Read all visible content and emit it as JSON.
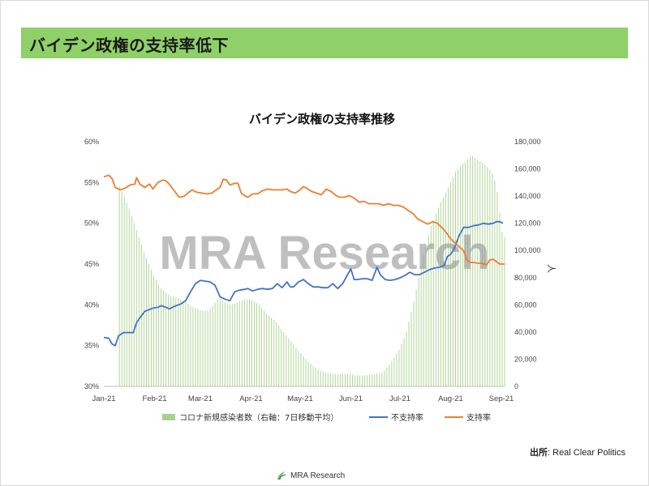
{
  "header": {
    "title": "バイデン政権の支持率低下"
  },
  "watermark": "MRA Research",
  "source": {
    "label": "出所",
    "sep": ":",
    "text": "Real Clear Politics"
  },
  "footer": {
    "brand": "MRA Research"
  },
  "colors": {
    "header_bg": "#8fd168",
    "bars": "#a9d18e",
    "disapproval": "#4472c4",
    "approval": "#ed7d31"
  },
  "chart_data": {
    "type": "line",
    "title": "バイデン政権の支持率推移",
    "ylabel": "",
    "y2label": "人",
    "ylim": [
      0.3,
      0.6
    ],
    "y2lim": [
      0,
      180000
    ],
    "x_ticks": [
      "Jan-21",
      "Feb-21",
      "Mar-21",
      "Apr-21",
      "May-21",
      "Jun-21",
      "Jul-21",
      "Aug-21",
      "Sep-21"
    ],
    "y_ticks": [
      "30%",
      "35%",
      "40%",
      "45%",
      "50%",
      "55%",
      "60%"
    ],
    "y2_ticks": [
      "0",
      "20,000",
      "40,000",
      "60,000",
      "80,000",
      "100,000",
      "120,000",
      "140,000",
      "160,000",
      "180,000"
    ],
    "legend": [
      "コロナ新規感染者数（右軸：7日移動平均）",
      "不支持率",
      "支持率"
    ],
    "x_days": [
      0,
      31,
      59,
      90,
      120,
      151,
      181,
      212,
      243
    ],
    "cases": {
      "name": "コロナ新規感染者数（右軸：7日移動平均）",
      "axis": "right",
      "points": [
        [
          8,
          0
        ],
        [
          9,
          148000
        ],
        [
          10,
          146000
        ],
        [
          12,
          141000
        ],
        [
          15,
          132000
        ],
        [
          20,
          115000
        ],
        [
          25,
          97000
        ],
        [
          31,
          80000
        ],
        [
          35,
          72000
        ],
        [
          40,
          67000
        ],
        [
          45,
          65000
        ],
        [
          50,
          62000
        ],
        [
          55,
          58000
        ],
        [
          59,
          56000
        ],
        [
          63,
          55000
        ],
        [
          67,
          60000
        ],
        [
          70,
          65000
        ],
        [
          74,
          62000
        ],
        [
          78,
          60000
        ],
        [
          82,
          62000
        ],
        [
          86,
          64000
        ],
        [
          90,
          64000
        ],
        [
          95,
          60000
        ],
        [
          100,
          53000
        ],
        [
          105,
          48000
        ],
        [
          110,
          40000
        ],
        [
          115,
          32000
        ],
        [
          120,
          25000
        ],
        [
          125,
          18000
        ],
        [
          130,
          13000
        ],
        [
          135,
          10000
        ],
        [
          140,
          9000
        ],
        [
          145,
          9000
        ],
        [
          150,
          9000
        ],
        [
          155,
          8000
        ],
        [
          160,
          8000
        ],
        [
          165,
          9000
        ],
        [
          170,
          10000
        ],
        [
          172,
          12000
        ],
        [
          175,
          17000
        ],
        [
          178,
          22000
        ],
        [
          181,
          28000
        ],
        [
          185,
          40000
        ],
        [
          190,
          65000
        ],
        [
          195,
          95000
        ],
        [
          200,
          118000
        ],
        [
          205,
          133000
        ],
        [
          210,
          145000
        ],
        [
          212,
          150000
        ],
        [
          215,
          158000
        ],
        [
          218,
          162000
        ],
        [
          220,
          164000
        ],
        [
          223,
          168000
        ],
        [
          225,
          170000
        ],
        [
          228,
          167000
        ],
        [
          231,
          165000
        ],
        [
          234,
          162000
        ],
        [
          237,
          158000
        ],
        [
          240,
          148000
        ],
        [
          242,
          128000
        ],
        [
          243,
          115000
        ],
        [
          245,
          110000
        ]
      ]
    },
    "series": [
      {
        "name": "不支持率",
        "axis": "left",
        "points": [
          [
            0,
            0.36
          ],
          [
            3,
            0.359
          ],
          [
            5,
            0.352
          ],
          [
            7,
            0.35
          ],
          [
            9,
            0.362
          ],
          [
            12,
            0.366
          ],
          [
            16,
            0.366
          ],
          [
            18,
            0.366
          ],
          [
            20,
            0.378
          ],
          [
            22,
            0.384
          ],
          [
            25,
            0.392
          ],
          [
            30,
            0.396
          ],
          [
            33,
            0.397
          ],
          [
            35,
            0.399
          ],
          [
            38,
            0.397
          ],
          [
            40,
            0.395
          ],
          [
            43,
            0.398
          ],
          [
            47,
            0.401
          ],
          [
            50,
            0.405
          ],
          [
            53,
            0.416
          ],
          [
            56,
            0.426
          ],
          [
            59,
            0.43
          ],
          [
            62,
            0.429
          ],
          [
            65,
            0.428
          ],
          [
            68,
            0.424
          ],
          [
            71,
            0.41
          ],
          [
            74,
            0.407
          ],
          [
            77,
            0.405
          ],
          [
            80,
            0.416
          ],
          [
            83,
            0.418
          ],
          [
            86,
            0.419
          ],
          [
            88,
            0.42
          ],
          [
            91,
            0.417
          ],
          [
            94,
            0.419
          ],
          [
            97,
            0.42
          ],
          [
            100,
            0.419
          ],
          [
            103,
            0.42
          ],
          [
            106,
            0.426
          ],
          [
            109,
            0.421
          ],
          [
            112,
            0.428
          ],
          [
            114,
            0.422
          ],
          [
            116,
            0.422
          ],
          [
            119,
            0.428
          ],
          [
            122,
            0.431
          ],
          [
            125,
            0.426
          ],
          [
            128,
            0.422
          ],
          [
            131,
            0.422
          ],
          [
            134,
            0.421
          ],
          [
            137,
            0.421
          ],
          [
            140,
            0.426
          ],
          [
            143,
            0.42
          ],
          [
            146,
            0.426
          ],
          [
            149,
            0.437
          ],
          [
            151,
            0.444
          ],
          [
            153,
            0.431
          ],
          [
            155,
            0.431
          ],
          [
            158,
            0.432
          ],
          [
            161,
            0.432
          ],
          [
            164,
            0.43
          ],
          [
            167,
            0.446
          ],
          [
            169,
            0.437
          ],
          [
            172,
            0.431
          ],
          [
            175,
            0.43
          ],
          [
            178,
            0.431
          ],
          [
            181,
            0.433
          ],
          [
            184,
            0.436
          ],
          [
            187,
            0.44
          ],
          [
            190,
            0.437
          ],
          [
            193,
            0.437
          ],
          [
            196,
            0.44
          ],
          [
            199,
            0.443
          ],
          [
            202,
            0.445
          ],
          [
            205,
            0.446
          ],
          [
            208,
            0.448
          ],
          [
            210,
            0.459
          ],
          [
            212,
            0.462
          ],
          [
            214,
            0.468
          ],
          [
            217,
            0.484
          ],
          [
            220,
            0.495
          ],
          [
            223,
            0.495
          ],
          [
            226,
            0.497
          ],
          [
            229,
            0.498
          ],
          [
            232,
            0.5
          ],
          [
            235,
            0.499
          ],
          [
            238,
            0.5
          ],
          [
            240,
            0.502
          ],
          [
            242,
            0.502
          ],
          [
            244,
            0.5
          ]
        ]
      },
      {
        "name": "支持率",
        "axis": "left",
        "points": [
          [
            0,
            0.557
          ],
          [
            3,
            0.559
          ],
          [
            5,
            0.555
          ],
          [
            7,
            0.544
          ],
          [
            10,
            0.541
          ],
          [
            13,
            0.543
          ],
          [
            16,
            0.547
          ],
          [
            19,
            0.548
          ],
          [
            20,
            0.556
          ],
          [
            22,
            0.548
          ],
          [
            25,
            0.544
          ],
          [
            28,
            0.548
          ],
          [
            30,
            0.542
          ],
          [
            33,
            0.55
          ],
          [
            36,
            0.553
          ],
          [
            38,
            0.552
          ],
          [
            40,
            0.548
          ],
          [
            43,
            0.54
          ],
          [
            46,
            0.532
          ],
          [
            49,
            0.533
          ],
          [
            52,
            0.538
          ],
          [
            54,
            0.541
          ],
          [
            57,
            0.538
          ],
          [
            60,
            0.537
          ],
          [
            63,
            0.536
          ],
          [
            66,
            0.537
          ],
          [
            68,
            0.54
          ],
          [
            71,
            0.544
          ],
          [
            73,
            0.554
          ],
          [
            75,
            0.553
          ],
          [
            77,
            0.547
          ],
          [
            80,
            0.549
          ],
          [
            82,
            0.549
          ],
          [
            84,
            0.537
          ],
          [
            86,
            0.534
          ],
          [
            88,
            0.532
          ],
          [
            91,
            0.536
          ],
          [
            94,
            0.536
          ],
          [
            97,
            0.54
          ],
          [
            100,
            0.542
          ],
          [
            103,
            0.541
          ],
          [
            106,
            0.541
          ],
          [
            109,
            0.541
          ],
          [
            112,
            0.542
          ],
          [
            114,
            0.539
          ],
          [
            117,
            0.537
          ],
          [
            120,
            0.541
          ],
          [
            122,
            0.545
          ],
          [
            124,
            0.543
          ],
          [
            127,
            0.539
          ],
          [
            130,
            0.537
          ],
          [
            133,
            0.535
          ],
          [
            136,
            0.542
          ],
          [
            139,
            0.539
          ],
          [
            142,
            0.534
          ],
          [
            144,
            0.532
          ],
          [
            147,
            0.532
          ],
          [
            150,
            0.534
          ],
          [
            153,
            0.531
          ],
          [
            156,
            0.526
          ],
          [
            159,
            0.527
          ],
          [
            162,
            0.524
          ],
          [
            165,
            0.524
          ],
          [
            168,
            0.524
          ],
          [
            171,
            0.522
          ],
          [
            174,
            0.524
          ],
          [
            177,
            0.522
          ],
          [
            180,
            0.522
          ],
          [
            183,
            0.52
          ],
          [
            186,
            0.516
          ],
          [
            189,
            0.512
          ],
          [
            192,
            0.505
          ],
          [
            195,
            0.502
          ],
          [
            198,
            0.499
          ],
          [
            201,
            0.502
          ],
          [
            204,
            0.5
          ],
          [
            207,
            0.494
          ],
          [
            210,
            0.487
          ],
          [
            212,
            0.481
          ],
          [
            215,
            0.475
          ],
          [
            218,
            0.47
          ],
          [
            220,
            0.466
          ],
          [
            222,
            0.455
          ],
          [
            224,
            0.452
          ],
          [
            226,
            0.452
          ],
          [
            229,
            0.451
          ],
          [
            231,
            0.451
          ],
          [
            234,
            0.449
          ],
          [
            236,
            0.455
          ],
          [
            238,
            0.456
          ],
          [
            240,
            0.453
          ],
          [
            242,
            0.45
          ],
          [
            245,
            0.45
          ]
        ]
      }
    ]
  }
}
